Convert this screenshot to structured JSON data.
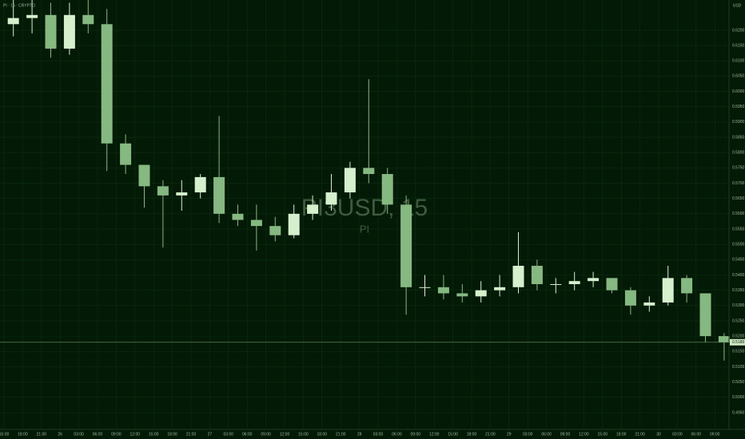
{
  "chart_data": {
    "type": "candlestick",
    "symbol": "PI3USD, 15",
    "base": "PI",
    "legend": "PI · 15 · CRYPTO",
    "currency": "USD",
    "up_color": "#d6efcc",
    "down_color": "#86b882",
    "background": "#031a06",
    "grid": true,
    "categories": [
      "15:00",
      "18:00",
      "21:00",
      "26",
      "03:00",
      "06:00",
      "09:00",
      "12:00",
      "15:00",
      "18:00",
      "21:00",
      "27",
      "03:00",
      "06:00",
      "09:00",
      "12:00",
      "15:00",
      "18:00",
      "21:00",
      "28",
      "03:00",
      "06:00",
      "09:00",
      "12:00",
      "15:00",
      "18:00",
      "21:00",
      "29",
      "03:00",
      "06:00",
      "09:00",
      "12:00",
      "15:00",
      "18:00",
      "21:00",
      "30",
      "03:00",
      "06:00",
      "09:00"
    ],
    "open": [
      0.622,
      0.624,
      0.625,
      0.614,
      0.625,
      0.622,
      0.583,
      0.576,
      0.569,
      0.566,
      0.567,
      0.572,
      0.56,
      0.558,
      0.556,
      0.553,
      0.56,
      0.563,
      0.567,
      0.575,
      0.573,
      0.563,
      0.536,
      0.536,
      0.534,
      0.533,
      0.535,
      0.536,
      0.543,
      0.537,
      0.537,
      0.538,
      0.539,
      0.535,
      0.53,
      0.531,
      0.539,
      0.534,
      0.52
    ],
    "high": [
      0.6299,
      0.6299,
      0.629,
      0.629,
      0.6299,
      0.627,
      0.586,
      0.575,
      0.571,
      0.571,
      0.573,
      0.592,
      0.563,
      0.563,
      0.559,
      0.563,
      0.566,
      0.573,
      0.577,
      0.604,
      0.575,
      0.566,
      0.54,
      0.54,
      0.537,
      0.538,
      0.54,
      0.554,
      0.545,
      0.539,
      0.541,
      0.541,
      0.539,
      0.536,
      0.533,
      0.543,
      0.54,
      0.534,
      0.521
    ],
    "low": [
      0.618,
      0.619,
      0.611,
      0.612,
      0.619,
      0.574,
      0.573,
      0.562,
      0.549,
      0.561,
      0.565,
      0.557,
      0.556,
      0.548,
      0.551,
      0.552,
      0.558,
      0.561,
      0.565,
      0.57,
      0.56,
      0.527,
      0.533,
      0.532,
      0.531,
      0.531,
      0.533,
      0.534,
      0.535,
      0.534,
      0.535,
      0.536,
      0.534,
      0.527,
      0.528,
      0.53,
      0.531,
      0.518,
      0.512
    ],
    "close": [
      0.624,
      0.625,
      0.614,
      0.625,
      0.622,
      0.583,
      0.576,
      0.569,
      0.566,
      0.567,
      0.572,
      0.56,
      0.558,
      0.556,
      0.553,
      0.56,
      0.563,
      0.567,
      0.575,
      0.573,
      0.563,
      0.536,
      0.536,
      0.534,
      0.533,
      0.535,
      0.536,
      0.543,
      0.537,
      0.537,
      0.538,
      0.539,
      0.535,
      0.53,
      0.531,
      0.539,
      0.534,
      0.52,
      0.518
    ],
    "last_price": {
      "value": 0.518,
      "label": "0.5180"
    },
    "ylim": [
      0.4895,
      0.6299
    ],
    "yticks": [
      {
        "value": 0.495,
        "label": "0.4950"
      },
      {
        "value": 0.5,
        "label": "0.5000"
      },
      {
        "value": 0.505,
        "label": "0.5050"
      },
      {
        "value": 0.51,
        "label": "0.5100"
      },
      {
        "value": 0.515,
        "label": "0.5150"
      },
      {
        "value": 0.52,
        "label": "0.5200"
      },
      {
        "value": 0.525,
        "label": "0.5250"
      },
      {
        "value": 0.53,
        "label": "0.5300"
      },
      {
        "value": 0.535,
        "label": "0.5350"
      },
      {
        "value": 0.54,
        "label": "0.5400"
      },
      {
        "value": 0.545,
        "label": "0.5450"
      },
      {
        "value": 0.55,
        "label": "0.5500"
      },
      {
        "value": 0.555,
        "label": "0.5550"
      },
      {
        "value": 0.56,
        "label": "0.5600"
      },
      {
        "value": 0.565,
        "label": "0.5650"
      },
      {
        "value": 0.57,
        "label": "0.5700"
      },
      {
        "value": 0.575,
        "label": "0.5750"
      },
      {
        "value": 0.58,
        "label": "0.5800"
      },
      {
        "value": 0.585,
        "label": "0.5850"
      },
      {
        "value": 0.59,
        "label": "0.5900"
      },
      {
        "value": 0.595,
        "label": "0.5950"
      },
      {
        "value": 0.6,
        "label": "0.6000"
      },
      {
        "value": 0.605,
        "label": "0.6050"
      },
      {
        "value": 0.61,
        "label": "0.6100"
      },
      {
        "value": 0.615,
        "label": "0.6150"
      },
      {
        "value": 0.62,
        "label": "0.6200"
      }
    ]
  }
}
